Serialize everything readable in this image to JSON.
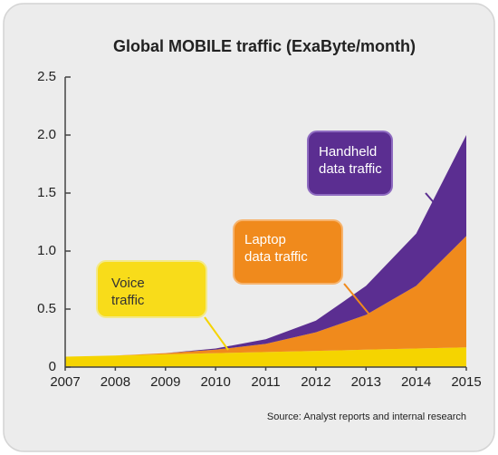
{
  "chart_data": {
    "type": "stacked_area",
    "title": "Global MOBILE traffic (ExaByte/month)",
    "source": "Source: Analyst reports and internal research",
    "x": [
      2007,
      2008,
      2009,
      2010,
      2011,
      2012,
      2013,
      2014,
      2015
    ],
    "xlim": [
      2007,
      2015
    ],
    "xticks": [
      2007,
      2008,
      2009,
      2010,
      2011,
      2012,
      2013,
      2014,
      2015
    ],
    "ylim": [
      0,
      2.5
    ],
    "yticks": [
      0,
      0.5,
      {
        "value": 1,
        "label": "1.0"
      },
      1.5,
      {
        "value": 2,
        "label": "2.0"
      },
      2.5
    ],
    "series": [
      {
        "name": "Voice traffic",
        "color": "#f5d400",
        "values": [
          0.09,
          0.1,
          0.11,
          0.12,
          0.13,
          0.14,
          0.15,
          0.16,
          0.17
        ]
      },
      {
        "name": "Laptop data traffic",
        "color": "#f08a1c",
        "values": [
          0,
          0,
          0.01,
          0.03,
          0.07,
          0.16,
          0.3,
          0.54,
          0.96
        ]
      },
      {
        "name": "Handheld data traffic",
        "color": "#5b2e91",
        "values": [
          0,
          0,
          0,
          0.01,
          0.04,
          0.1,
          0.25,
          0.45,
          0.87
        ]
      }
    ]
  }
}
